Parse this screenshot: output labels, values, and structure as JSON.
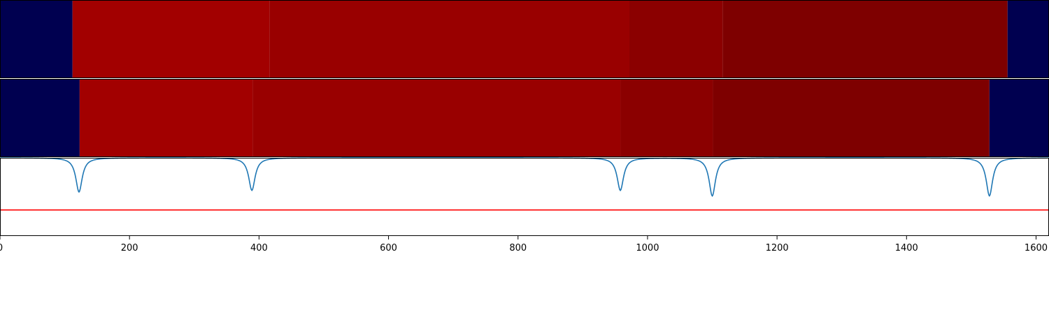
{
  "chart_data": {
    "type": "heatmap",
    "title": "",
    "xlabel": "",
    "ylabel": "",
    "xlim": [
      0,
      1620
    ],
    "xticks": [
      "0",
      "200",
      "400",
      "600",
      "800",
      "1000",
      "1200",
      "1400",
      "1600"
    ],
    "xtick_values": [
      0,
      200,
      400,
      600,
      800,
      1000,
      1200,
      1400,
      1600
    ],
    "grid": false,
    "legend": "none",
    "colors": {
      "background_segment": "#000050",
      "segment_1": "#a20000",
      "segment_2": "#990000",
      "segment_3": "#8b0000",
      "segment_4": "#7e0000",
      "trace_line": "#1f77b4",
      "threshold_line": "#ff0000"
    },
    "bands": [
      {
        "segments": [
          {
            "start": 0,
            "end": 112,
            "color": "#000050"
          },
          {
            "start": 112,
            "end": 416,
            "color": "#a20000"
          },
          {
            "start": 416,
            "end": 972,
            "color": "#990000"
          },
          {
            "start": 972,
            "end": 1116,
            "color": "#8b0000"
          },
          {
            "start": 1116,
            "end": 1556,
            "color": "#7e0000"
          },
          {
            "start": 1556,
            "end": 1620,
            "color": "#000050"
          }
        ]
      },
      {
        "segments": [
          {
            "start": 0,
            "end": 123,
            "color": "#000050"
          },
          {
            "start": 123,
            "end": 390,
            "color": "#a20000"
          },
          {
            "start": 390,
            "end": 958,
            "color": "#990000"
          },
          {
            "start": 958,
            "end": 1101,
            "color": "#8b0000"
          },
          {
            "start": 1101,
            "end": 1528,
            "color": "#7e0000"
          },
          {
            "start": 1528,
            "end": 1620,
            "color": "#000050"
          }
        ]
      }
    ],
    "trace": {
      "baseline": 1.0,
      "ylim": [
        -2.0,
        1.0
      ],
      "dips": [
        {
          "x": 122,
          "depth": 1.31
        },
        {
          "x": 389,
          "depth": 1.25
        },
        {
          "x": 958,
          "depth": 1.25
        },
        {
          "x": 1100,
          "depth": 1.46
        },
        {
          "x": 1528,
          "depth": 1.46
        }
      ]
    },
    "threshold": {
      "y": -1.0
    }
  }
}
